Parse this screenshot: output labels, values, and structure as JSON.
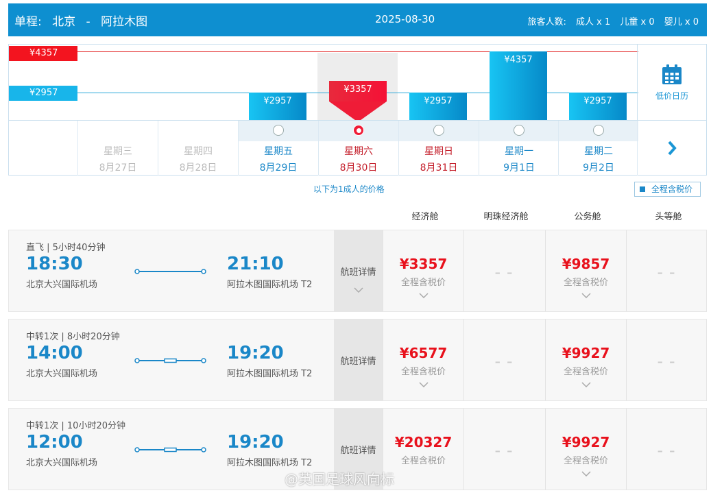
{
  "header": {
    "route_label": "单程:",
    "from": "北京",
    "sep": "-",
    "to": "阿拉木图",
    "date": "2025-08-30",
    "passengers_label": "旅客人数:",
    "adult": "成人 x 1",
    "child": "儿童 x 0",
    "infant": "婴儿 x 0"
  },
  "calendar": {
    "max_price": "¥4357",
    "min_price": "¥2957",
    "low_price_calendar": "低价日历",
    "days": [
      {
        "weekday": "星期三",
        "date": "8月27日",
        "price": "",
        "state": "past"
      },
      {
        "weekday": "星期四",
        "date": "8月28日",
        "price": "",
        "state": "past"
      },
      {
        "weekday": "星期五",
        "date": "8月29日",
        "price": "¥2957",
        "state": "blue"
      },
      {
        "weekday": "星期六",
        "date": "8月30日",
        "price": "¥3357",
        "state": "selected"
      },
      {
        "weekday": "星期日",
        "date": "8月31日",
        "price": "¥2957",
        "state": "red"
      },
      {
        "weekday": "星期一",
        "date": "9月1日",
        "price": "¥4357",
        "state": "blue"
      },
      {
        "weekday": "星期二",
        "date": "9月2日",
        "price": "¥2957",
        "state": "blue"
      }
    ]
  },
  "note": "以下为1成人的价格",
  "tax_toggle": "全程含税价",
  "cabins": [
    "经济舱",
    "明珠经济舱",
    "公务舱",
    "头等舱"
  ],
  "flights": [
    {
      "info": "直飞 | 5小时40分钟",
      "dep_time": "18:30",
      "arr_time": "21:10",
      "dep_airport": "北京大兴国际机场",
      "arr_airport": "阿拉木图国际机场 T2",
      "details": "航班详情",
      "economy": "¥3357",
      "economy_sub": "全程含税价",
      "premium": "– –",
      "business": "¥9857",
      "business_sub": "全程含税价",
      "first": "– –"
    },
    {
      "info": "中转1次 | 8小时20分钟",
      "dep_time": "14:00",
      "arr_time": "19:20",
      "dep_airport": "北京大兴国际机场",
      "arr_airport": "阿拉木图国际机场 T2",
      "details": "航班详情",
      "economy": "¥6577",
      "economy_sub": "全程含税价",
      "premium": "– –",
      "business": "¥9927",
      "business_sub": "全程含税价",
      "first": "– –"
    },
    {
      "info": "中转1次 | 10小时20分钟",
      "dep_time": "12:00",
      "arr_time": "19:20",
      "dep_airport": "北京大兴国际机场",
      "arr_airport": "阿拉木图国际机场 T2",
      "details": "航班详情",
      "economy": "¥20327",
      "economy_sub": "全程含税价",
      "premium": "– –",
      "business": "¥9927",
      "business_sub": "全程含税价",
      "first": "– –"
    }
  ],
  "watermark": "@英国足球风向标"
}
